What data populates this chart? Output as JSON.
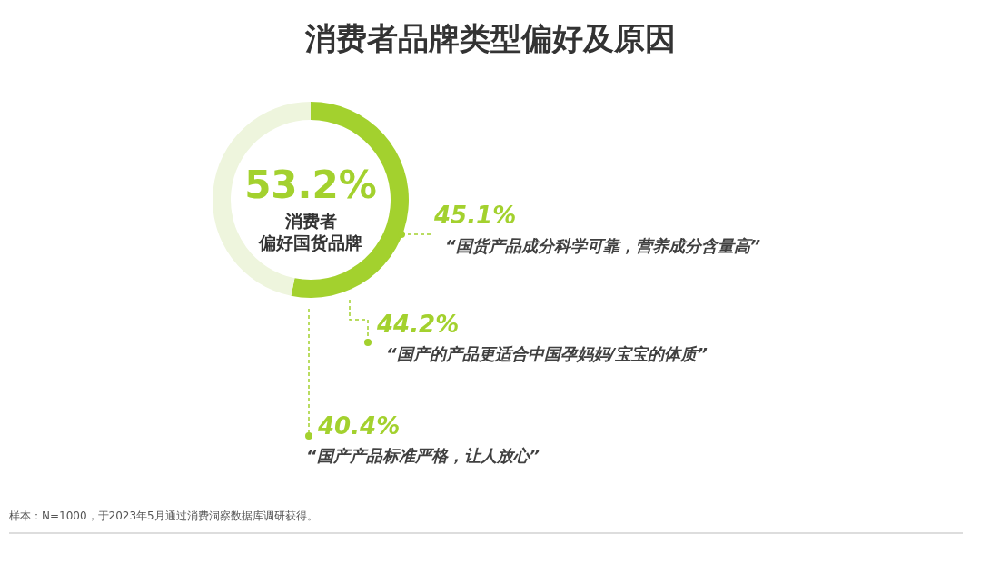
{
  "chart_data": {
    "type": "donut",
    "title": "消费者品牌类型偏好及原因",
    "categories": [
      "消费者偏好国货品牌",
      null
    ],
    "values": [
      53.2,
      46.8
    ],
    "colors": [
      "#a3d12e",
      "#eef5dd"
    ],
    "value_labels": [
      "53.2%",
      null
    ],
    "annotations": [
      "45.1%",
      "“国货产品成分科学可靠，营养成分含量高”",
      "44.2%",
      "“国产的产品更适合中国孕妈妈/宝宝的体质”",
      "40.4%",
      "“国产产品标准严格，让人放心”",
      "样本：N=1000，于2023年5月通过消费洞察数据库调研获得。"
    ]
  }
}
